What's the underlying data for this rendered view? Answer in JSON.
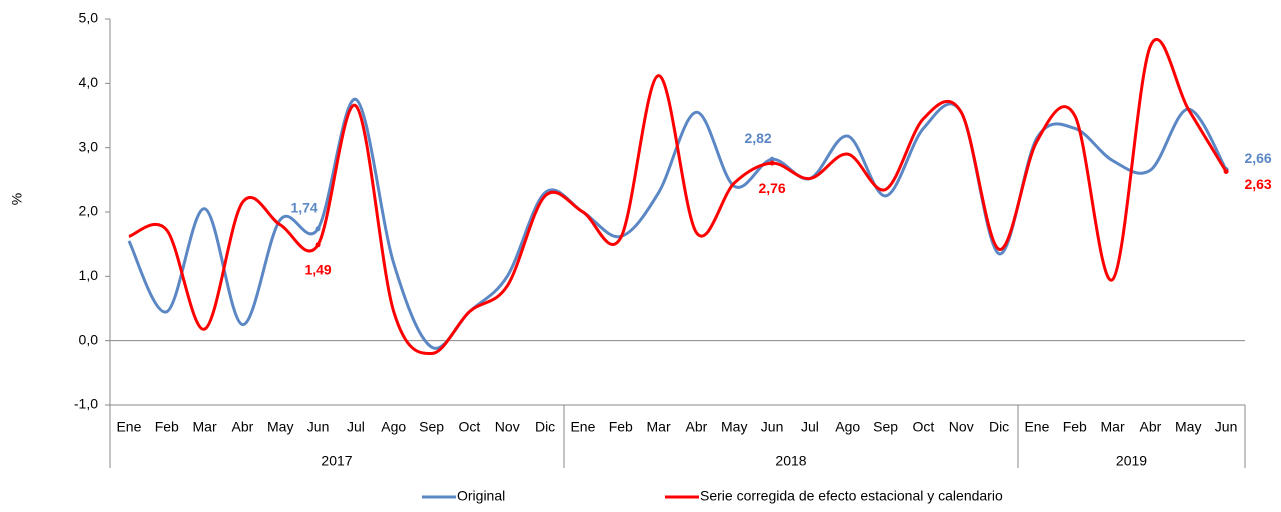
{
  "chart_data": {
    "type": "line",
    "y_label": "%",
    "ylim": [
      -1.0,
      5.0
    ],
    "yticks": [
      {
        "value": -1.0,
        "label": "-1,0"
      },
      {
        "value": 0.0,
        "label": "0,0"
      },
      {
        "value": 1.0,
        "label": "1,0"
      },
      {
        "value": 2.0,
        "label": "2,0"
      },
      {
        "value": 3.0,
        "label": "3,0"
      },
      {
        "value": 4.0,
        "label": "4,0"
      },
      {
        "value": 5.0,
        "label": "5,0"
      }
    ],
    "grid": false,
    "legend_position": "bottom",
    "groups": [
      {
        "label": "2017",
        "categories": [
          "Ene",
          "Feb",
          "Mar",
          "Abr",
          "May",
          "Jun",
          "Jul",
          "Ago",
          "Sep",
          "Oct",
          "Nov",
          "Dic"
        ]
      },
      {
        "label": "2018",
        "categories": [
          "Ene",
          "Feb",
          "Mar",
          "Abr",
          "May",
          "Jun",
          "Jul",
          "Ago",
          "Sep",
          "Oct",
          "Nov",
          "Dic"
        ]
      },
      {
        "label": "2019",
        "categories": [
          "Ene",
          "Feb",
          "Mar",
          "Abr",
          "May",
          "Jun"
        ]
      }
    ],
    "series": [
      {
        "name": "Original",
        "color": "#5b87c5",
        "values": [
          1.55,
          0.45,
          2.05,
          0.25,
          1.88,
          1.74,
          3.75,
          1.2,
          -0.1,
          0.45,
          1.0,
          2.3,
          2.0,
          1.62,
          2.3,
          3.55,
          2.4,
          2.82,
          2.52,
          3.18,
          2.25,
          3.3,
          3.55,
          1.35,
          3.15,
          3.3,
          2.8,
          2.65,
          3.6,
          2.66
        ],
        "value_labels": [
          null,
          null,
          null,
          null,
          null,
          "1,74",
          null,
          null,
          null,
          null,
          null,
          null,
          null,
          null,
          null,
          null,
          null,
          "2,82",
          null,
          null,
          null,
          null,
          null,
          null,
          null,
          null,
          null,
          null,
          null,
          "2,66"
        ]
      },
      {
        "name": "Serie corregida de efecto estacional y calendario",
        "color": "#ff0000",
        "values": [
          1.62,
          1.72,
          0.18,
          2.15,
          1.8,
          1.49,
          3.65,
          0.45,
          -0.2,
          0.45,
          0.85,
          2.25,
          2.0,
          1.6,
          4.12,
          1.68,
          2.45,
          2.76,
          2.52,
          2.9,
          2.35,
          3.45,
          3.55,
          1.42,
          3.1,
          3.5,
          0.95,
          4.58,
          3.6,
          2.63
        ],
        "value_labels": [
          null,
          null,
          null,
          null,
          null,
          "1,49",
          null,
          null,
          null,
          null,
          null,
          null,
          null,
          null,
          null,
          null,
          null,
          "2,76",
          null,
          null,
          null,
          null,
          null,
          null,
          null,
          null,
          null,
          null,
          null,
          "2,63"
        ]
      }
    ]
  }
}
